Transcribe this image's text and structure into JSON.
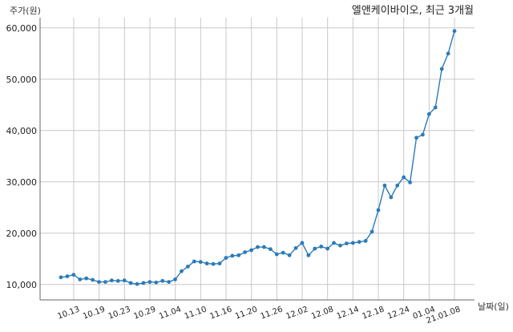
{
  "chart_data": {
    "type": "line",
    "title": "엘앤케이바이오, 최근 3개월",
    "ylabel": "주가(원)",
    "xlabel": "날짜(일)",
    "ylim": [
      7000,
      62000
    ],
    "yticks": [
      10000,
      20000,
      30000,
      40000,
      50000,
      60000
    ],
    "ytick_labels": [
      "10,000",
      "20,000",
      "30,000",
      "40,000",
      "50,000",
      "60,000"
    ],
    "xtick_labels": [
      "10.13",
      "10.19",
      "10.23",
      "10.29",
      "11.04",
      "11.10",
      "11.16",
      "11.20",
      "11.26",
      "12.02",
      "12.08",
      "12.14",
      "12.18",
      "12.24",
      "01.04",
      "21.01.08"
    ],
    "grid": "vertical-and-horizontal",
    "color": "#2b7bb9",
    "series": [
      {
        "values": [
          11400,
          11600,
          11900,
          11000,
          11200,
          10900,
          10500,
          10500,
          10800,
          10700,
          10800,
          10300,
          10100,
          10300,
          10500,
          10400,
          10700,
          10500,
          11000,
          12600,
          13500,
          14500,
          14400,
          14100,
          14000,
          14100,
          15200,
          15600,
          15700,
          16300,
          16700,
          17300,
          17300,
          16900,
          15900,
          16200,
          15700,
          17100,
          18100,
          15700,
          17000,
          17400,
          17000,
          18100,
          17600,
          18000,
          18100,
          18300,
          18500,
          20300,
          24500,
          29300,
          27000,
          29300,
          30900,
          29900,
          38600,
          39200,
          43200,
          44500,
          52000,
          55000,
          59400
        ]
      }
    ]
  }
}
